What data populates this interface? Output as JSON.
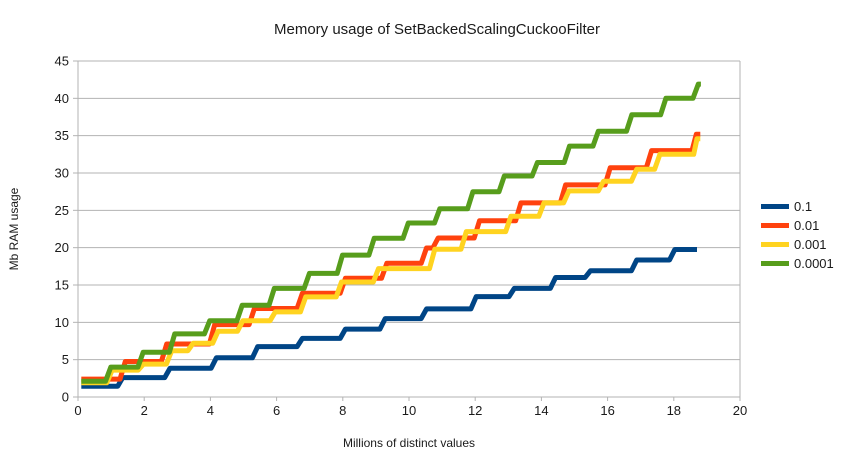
{
  "title": "Memory usage of SetBackedScalingCuckooFilter",
  "colors": {
    "background": "#ffffff",
    "grid": "#b3b3b3",
    "axis": "#b3b3b3",
    "text": "#1a1a1a"
  },
  "chart_data": {
    "type": "line",
    "step_style": true,
    "title": "Memory usage of SetBackedScalingCuckooFilter",
    "xlabel": "Millions of distinct values",
    "ylabel": "Mb RAM usage",
    "xlim": [
      0,
      20
    ],
    "ylim": [
      0,
      45
    ],
    "xticks": [
      0,
      2,
      4,
      6,
      8,
      10,
      12,
      14,
      16,
      18,
      20
    ],
    "yticks": [
      0,
      5,
      10,
      15,
      20,
      25,
      30,
      35,
      40,
      45
    ],
    "grid": "horizontal",
    "legend_position": "right",
    "series": [
      {
        "name": "0.1",
        "color": "#004586",
        "points": [
          [
            0.1,
            1.45
          ],
          [
            1.2,
            1.45
          ],
          [
            1.35,
            2.6
          ],
          [
            2.62,
            2.6
          ],
          [
            2.78,
            3.85
          ],
          [
            4.02,
            3.85
          ],
          [
            4.18,
            5.25
          ],
          [
            5.27,
            5.25
          ],
          [
            5.43,
            6.75
          ],
          [
            6.62,
            6.75
          ],
          [
            6.78,
            7.85
          ],
          [
            7.92,
            7.85
          ],
          [
            8.08,
            9.1
          ],
          [
            9.12,
            9.1
          ],
          [
            9.28,
            10.5
          ],
          [
            10.37,
            10.5
          ],
          [
            10.53,
            11.8
          ],
          [
            11.87,
            11.8
          ],
          [
            12.03,
            13.45
          ],
          [
            13.02,
            13.45
          ],
          [
            13.18,
            14.55
          ],
          [
            14.27,
            14.55
          ],
          [
            14.43,
            16.0
          ],
          [
            15.32,
            16.0
          ],
          [
            15.48,
            16.9
          ],
          [
            16.72,
            16.9
          ],
          [
            16.88,
            18.35
          ],
          [
            17.87,
            18.35
          ],
          [
            18.03,
            19.75
          ],
          [
            18.7,
            19.75
          ]
        ]
      },
      {
        "name": "0.01",
        "color": "#ff420e",
        "points": [
          [
            0.1,
            2.4
          ],
          [
            1.27,
            2.4
          ],
          [
            1.43,
            4.75
          ],
          [
            2.52,
            4.75
          ],
          [
            2.68,
            7.1
          ],
          [
            3.97,
            7.1
          ],
          [
            4.13,
            9.7
          ],
          [
            5.17,
            9.7
          ],
          [
            5.33,
            11.85
          ],
          [
            6.62,
            11.85
          ],
          [
            6.78,
            13.9
          ],
          [
            7.92,
            13.9
          ],
          [
            8.08,
            15.9
          ],
          [
            9.17,
            15.9
          ],
          [
            9.33,
            17.9
          ],
          [
            10.37,
            17.9
          ],
          [
            10.53,
            19.95
          ],
          [
            10.72,
            19.95
          ],
          [
            10.88,
            21.3
          ],
          [
            11.97,
            21.3
          ],
          [
            12.13,
            23.6
          ],
          [
            13.22,
            23.6
          ],
          [
            13.38,
            26.0
          ],
          [
            14.57,
            26.0
          ],
          [
            14.73,
            28.4
          ],
          [
            15.92,
            28.4
          ],
          [
            16.08,
            30.7
          ],
          [
            17.17,
            30.7
          ],
          [
            17.33,
            33.0
          ],
          [
            18.55,
            33.0
          ],
          [
            18.68,
            35.2
          ],
          [
            18.8,
            35.2
          ]
        ]
      },
      {
        "name": "0.001",
        "color": "#ffd320",
        "points": [
          [
            0.1,
            1.9
          ],
          [
            0.87,
            1.9
          ],
          [
            1.03,
            3.6
          ],
          [
            1.82,
            3.6
          ],
          [
            1.98,
            4.4
          ],
          [
            2.67,
            4.4
          ],
          [
            2.83,
            6.2
          ],
          [
            3.32,
            6.2
          ],
          [
            3.48,
            7.2
          ],
          [
            4.07,
            7.2
          ],
          [
            4.23,
            8.8
          ],
          [
            4.82,
            8.8
          ],
          [
            4.98,
            10.2
          ],
          [
            5.8,
            10.2
          ],
          [
            5.96,
            11.4
          ],
          [
            6.72,
            11.4
          ],
          [
            6.88,
            13.4
          ],
          [
            7.8,
            13.4
          ],
          [
            7.96,
            15.4
          ],
          [
            8.92,
            15.4
          ],
          [
            9.08,
            17.2
          ],
          [
            10.62,
            17.2
          ],
          [
            10.78,
            19.8
          ],
          [
            11.57,
            19.8
          ],
          [
            11.73,
            22.15
          ],
          [
            12.92,
            22.15
          ],
          [
            13.08,
            24.2
          ],
          [
            13.92,
            24.2
          ],
          [
            14.08,
            26.0
          ],
          [
            14.67,
            26.0
          ],
          [
            14.83,
            27.6
          ],
          [
            15.72,
            27.6
          ],
          [
            15.88,
            28.9
          ],
          [
            16.72,
            28.9
          ],
          [
            16.88,
            30.5
          ],
          [
            17.42,
            30.5
          ],
          [
            17.58,
            32.5
          ],
          [
            18.6,
            32.5
          ],
          [
            18.7,
            34.6
          ],
          [
            18.8,
            34.6
          ]
        ]
      },
      {
        "name": "0.0001",
        "color": "#579d1c",
        "points": [
          [
            0.1,
            2.1
          ],
          [
            0.83,
            2.1
          ],
          [
            0.99,
            4.0
          ],
          [
            1.81,
            4.0
          ],
          [
            1.97,
            6.0
          ],
          [
            2.76,
            6.0
          ],
          [
            2.92,
            8.45
          ],
          [
            3.82,
            8.45
          ],
          [
            3.98,
            10.2
          ],
          [
            4.8,
            10.2
          ],
          [
            4.96,
            12.3
          ],
          [
            5.77,
            12.3
          ],
          [
            5.93,
            14.55
          ],
          [
            6.83,
            14.55
          ],
          [
            6.99,
            16.55
          ],
          [
            7.83,
            16.55
          ],
          [
            7.99,
            19.0
          ],
          [
            8.79,
            19.0
          ],
          [
            8.95,
            21.25
          ],
          [
            9.82,
            21.25
          ],
          [
            9.98,
            23.3
          ],
          [
            10.77,
            23.3
          ],
          [
            10.93,
            25.2
          ],
          [
            11.77,
            25.2
          ],
          [
            11.93,
            27.5
          ],
          [
            12.72,
            27.5
          ],
          [
            12.88,
            29.6
          ],
          [
            13.72,
            29.6
          ],
          [
            13.88,
            31.4
          ],
          [
            14.69,
            31.4
          ],
          [
            14.85,
            33.6
          ],
          [
            15.56,
            33.6
          ],
          [
            15.72,
            35.6
          ],
          [
            16.57,
            35.6
          ],
          [
            16.73,
            37.8
          ],
          [
            17.6,
            37.8
          ],
          [
            17.76,
            40.0
          ],
          [
            18.58,
            40.0
          ],
          [
            18.74,
            41.9
          ],
          [
            18.82,
            41.9
          ]
        ]
      }
    ]
  },
  "legend": {
    "entries": [
      "0.1",
      "0.01",
      "0.001",
      "0.0001"
    ]
  }
}
